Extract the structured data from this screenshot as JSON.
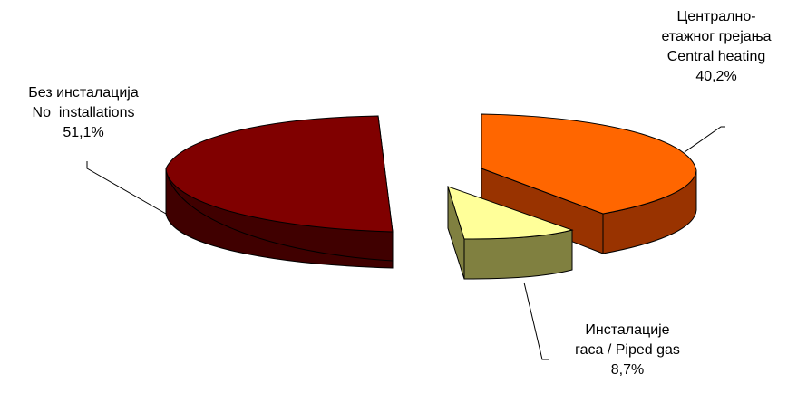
{
  "chart_data": {
    "type": "pie",
    "style": "3d-exploded",
    "slices": [
      {
        "key": "none",
        "lines": [
          "Без инсталација",
          "No  installations"
        ],
        "value_label": "51,1%",
        "value": 51.1,
        "top_color": "#800000",
        "side_color": "#400000"
      },
      {
        "key": "central",
        "lines": [
          "Централно-",
          "етажног грејања",
          "Central heating"
        ],
        "value_label": "40,2%",
        "value": 40.2,
        "top_color": "#FF6600",
        "side_color": "#993300"
      },
      {
        "key": "gas",
        "lines": [
          "Инсталације",
          "гаса / Piped gas"
        ],
        "value_label": "8,7%",
        "value": 8.7,
        "top_color": "#FFFF99",
        "side_color": "#808040"
      }
    ]
  }
}
